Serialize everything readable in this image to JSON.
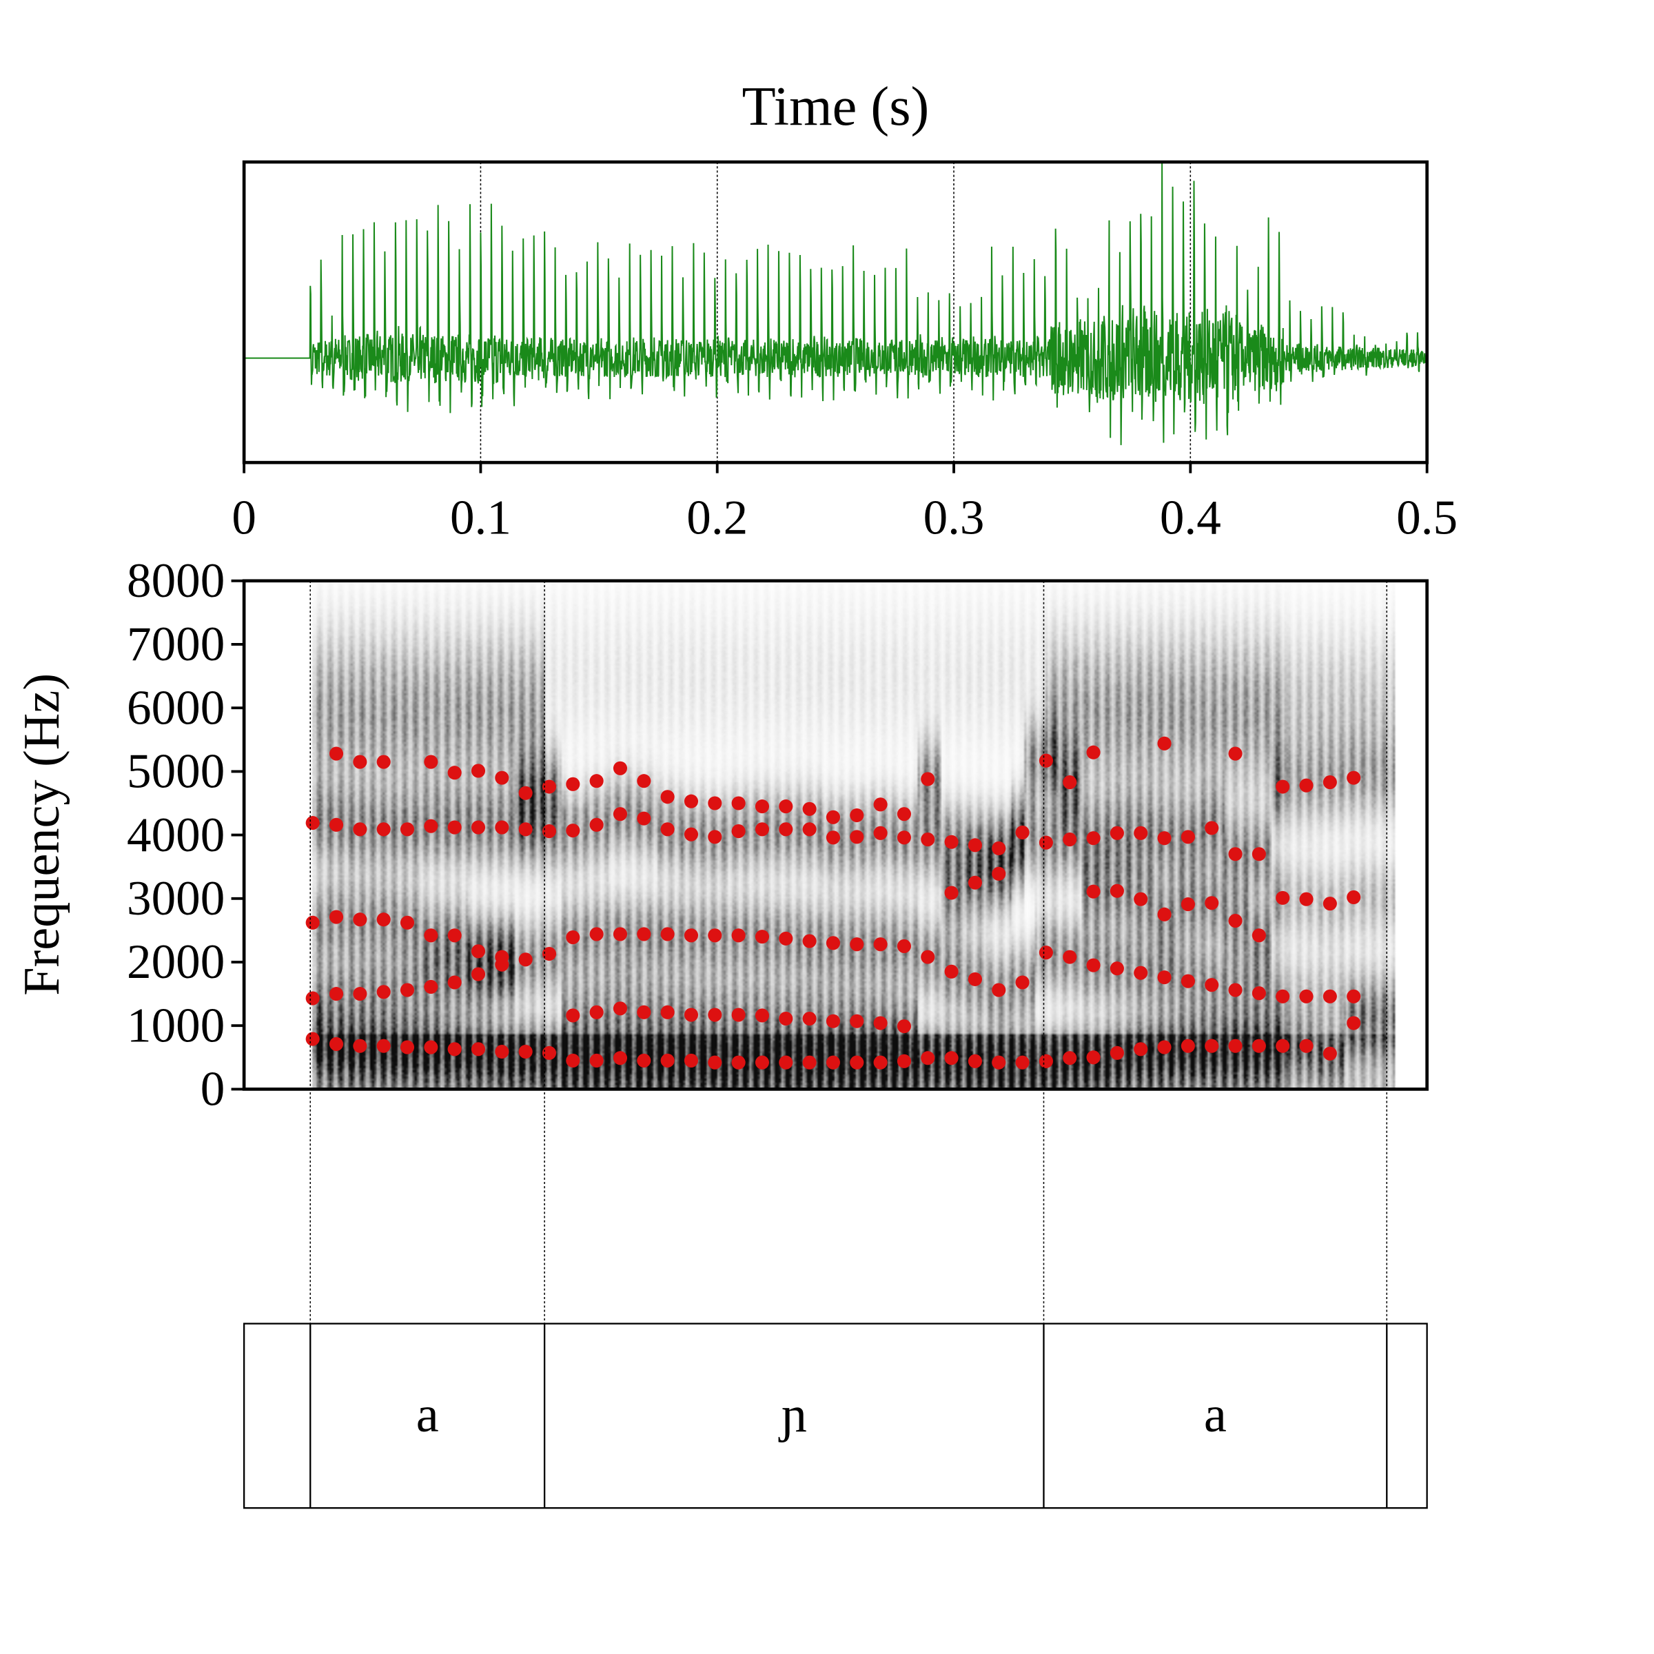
{
  "chart_data": {
    "type": "scatter",
    "title": "Time (s)",
    "waveform": {
      "color": "#1a8a1a",
      "xlim": [
        0,
        0.5
      ],
      "xticks": [
        "0",
        "0.1",
        "0.2",
        "0.3",
        "0.4",
        "0.5"
      ],
      "xtick_values": [
        0,
        0.1,
        0.2,
        0.3,
        0.4,
        0.5
      ],
      "grid_x": [
        0.1,
        0.2,
        0.3,
        0.4
      ]
    },
    "spectrogram": {
      "ylabel": "Frequency (Hz)",
      "ylim": [
        0,
        8000
      ],
      "yticks": [
        "0",
        "1000",
        "2000",
        "3000",
        "4000",
        "5000",
        "6000",
        "7000",
        "8000"
      ],
      "ytick_values": [
        0,
        1000,
        2000,
        3000,
        4000,
        5000,
        6000,
        7000,
        8000
      ],
      "dot_color": "#dd1111"
    },
    "formants": [
      {
        "t": 0.029,
        "f": [
          790,
          1430,
          2620,
          4190
        ]
      },
      {
        "t": 0.039,
        "f": [
          710,
          1500,
          2710,
          4160,
          5280
        ]
      },
      {
        "t": 0.049,
        "f": [
          680,
          1500,
          2670,
          4090,
          5150
        ]
      },
      {
        "t": 0.059,
        "f": [
          680,
          1530,
          2670,
          4090,
          5150
        ]
      },
      {
        "t": 0.069,
        "f": [
          660,
          1560,
          2620,
          4090
        ]
      },
      {
        "t": 0.079,
        "f": [
          660,
          1610,
          2420,
          4140,
          5150
        ]
      },
      {
        "t": 0.089,
        "f": [
          630,
          1680,
          2420,
          4120,
          4980
        ]
      },
      {
        "t": 0.099,
        "f": [
          630,
          1810,
          2170,
          4120,
          5010
        ]
      },
      {
        "t": 0.109,
        "f": [
          590,
          1960,
          2080,
          4120,
          4900
        ]
      },
      {
        "t": 0.119,
        "f": [
          590,
          2040,
          4090,
          4660
        ]
      },
      {
        "t": 0.129,
        "f": [
          570,
          2130,
          4060,
          4760
        ]
      },
      {
        "t": 0.139,
        "f": [
          450,
          1160,
          2390,
          4070,
          4800
        ]
      },
      {
        "t": 0.149,
        "f": [
          450,
          1210,
          2440,
          4160,
          4850
        ]
      },
      {
        "t": 0.159,
        "f": [
          490,
          1270,
          2440,
          4330,
          5050
        ]
      },
      {
        "t": 0.169,
        "f": [
          450,
          1210,
          2440,
          4260,
          4850
        ]
      },
      {
        "t": 0.179,
        "f": [
          450,
          1210,
          2440,
          4090,
          4600
        ]
      },
      {
        "t": 0.189,
        "f": [
          450,
          1170,
          2420,
          4010,
          4530
        ]
      },
      {
        "t": 0.199,
        "f": [
          420,
          1170,
          2420,
          3970,
          4500
        ]
      },
      {
        "t": 0.209,
        "f": [
          420,
          1170,
          2420,
          4060,
          4500
        ]
      },
      {
        "t": 0.219,
        "f": [
          420,
          1160,
          2400,
          4090,
          4450
        ]
      },
      {
        "t": 0.229,
        "f": [
          420,
          1110,
          2370,
          4090,
          4450
        ]
      },
      {
        "t": 0.239,
        "f": [
          420,
          1110,
          2330,
          4090,
          4410
        ]
      },
      {
        "t": 0.249,
        "f": [
          420,
          1070,
          2300,
          3960,
          4280
        ]
      },
      {
        "t": 0.259,
        "f": [
          420,
          1070,
          2280,
          3970,
          4310
        ]
      },
      {
        "t": 0.269,
        "f": [
          420,
          1040,
          2280,
          4030,
          4480
        ]
      },
      {
        "t": 0.279,
        "f": [
          440,
          990,
          2250,
          3960,
          4330
        ]
      },
      {
        "t": 0.289,
        "f": [
          490,
          2080,
          3930,
          4880
        ]
      },
      {
        "t": 0.299,
        "f": [
          490,
          1850,
          3090,
          3890
        ]
      },
      {
        "t": 0.309,
        "f": [
          440,
          1730,
          3250,
          3840
        ]
      },
      {
        "t": 0.319,
        "f": [
          420,
          1560,
          3390,
          3790
        ]
      },
      {
        "t": 0.329,
        "f": [
          420,
          1680,
          4040
        ]
      },
      {
        "t": 0.339,
        "f": [
          440,
          2150,
          3880,
          5170
        ]
      },
      {
        "t": 0.349,
        "f": [
          490,
          2080,
          3930,
          4830
        ]
      },
      {
        "t": 0.359,
        "f": [
          500,
          1950,
          3110,
          3950,
          5300
        ]
      },
      {
        "t": 0.369,
        "f": [
          570,
          1900,
          3120,
          4030
        ]
      },
      {
        "t": 0.379,
        "f": [
          630,
          1830,
          2990,
          4030
        ]
      },
      {
        "t": 0.389,
        "f": [
          660,
          1760,
          2750,
          3950,
          5440
        ]
      },
      {
        "t": 0.399,
        "f": [
          680,
          1700,
          2910,
          3970
        ]
      },
      {
        "t": 0.409,
        "f": [
          680,
          1640,
          2930,
          4110
        ]
      },
      {
        "t": 0.419,
        "f": [
          680,
          1560,
          2650,
          3700,
          5280
        ]
      },
      {
        "t": 0.429,
        "f": [
          680,
          1510,
          2420,
          3700
        ]
      },
      {
        "t": 0.439,
        "f": [
          680,
          1460,
          3010,
          4760
        ]
      },
      {
        "t": 0.449,
        "f": [
          680,
          1460,
          2990,
          4780
        ]
      },
      {
        "t": 0.459,
        "f": [
          560,
          1460,
          2920,
          4830
        ]
      },
      {
        "t": 0.469,
        "f": [
          1040,
          1460,
          3020,
          4900
        ]
      }
    ],
    "tier": {
      "boundaries": [
        0.028,
        0.127,
        0.338,
        0.483
      ],
      "intervals": [
        {
          "label": "",
          "start": 0,
          "end": 0.028
        },
        {
          "label": "a",
          "start": 0.028,
          "end": 0.127
        },
        {
          "label": "ɲ",
          "start": 0.127,
          "end": 0.338
        },
        {
          "label": "a",
          "start": 0.338,
          "end": 0.483
        },
        {
          "label": "",
          "start": 0.483,
          "end": 0.5
        }
      ]
    }
  }
}
